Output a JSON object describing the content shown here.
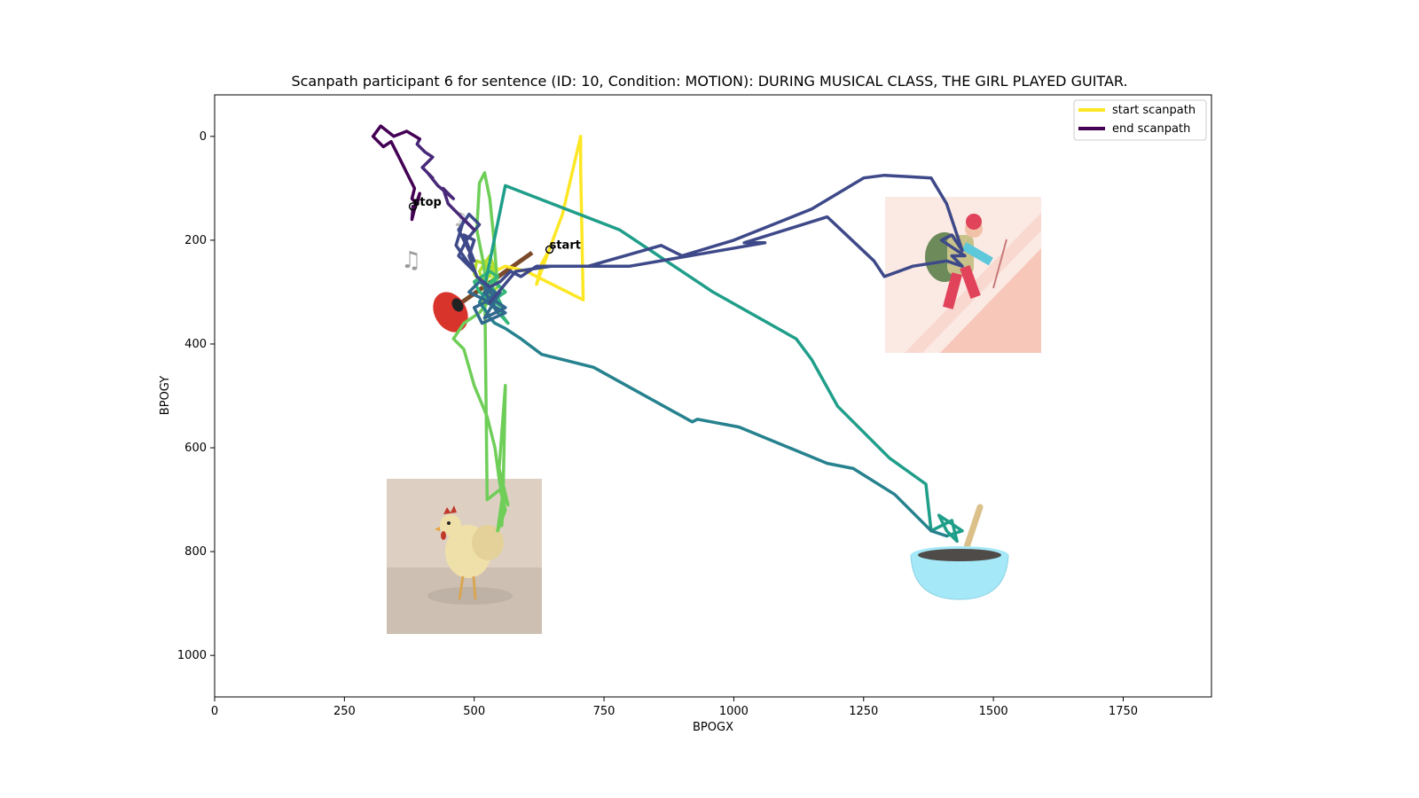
{
  "chart_data": {
    "type": "line",
    "title": "Scanpath participant 6 for sentence (ID: 10, Condition: MOTION):  DURING MUSICAL CLASS, THE GIRL PLAYED GUITAR.",
    "xlabel": "BPOGX",
    "ylabel": "BPOGY",
    "xlim": [
      0,
      1920
    ],
    "ylim": [
      1080,
      -80
    ],
    "y_inverted": true,
    "xticks": [
      0,
      250,
      500,
      750,
      1000,
      1250,
      1500,
      1750
    ],
    "yticks": [
      0,
      200,
      400,
      600,
      800,
      1000
    ],
    "grid": false,
    "legend_position": "top-right",
    "legend": [
      {
        "label": "start scanpath",
        "color": "#fde725"
      },
      {
        "label": "end scanpath",
        "color": "#440154"
      }
    ],
    "colormap": "viridis",
    "colormap_stops": [
      "#fde725",
      "#b5de2b",
      "#6ece58",
      "#35b779",
      "#1f9e89",
      "#26828e",
      "#31688e",
      "#3e4989",
      "#482878",
      "#440154"
    ],
    "annotations": [
      {
        "text": "start",
        "x": 645,
        "y": 218
      },
      {
        "text": "stop",
        "x": 382,
        "y": 135
      }
    ],
    "series": [
      {
        "x": [
          645,
          630,
          620,
          640,
          670,
          705,
          705,
          710,
          700,
          640,
          600,
          560,
          540,
          535
        ],
        "y": [
          218,
          245,
          285,
          230,
          150,
          0,
          60,
          315,
          310,
          280,
          260,
          250,
          260,
          250
        ]
      },
      {
        "x": [
          535,
          530,
          520,
          540,
          525,
          545,
          530,
          510,
          520,
          500,
          505,
          530,
          515,
          545
        ],
        "y": [
          250,
          270,
          240,
          265,
          300,
          270,
          230,
          260,
          290,
          265,
          240,
          250,
          320,
          290
        ]
      },
      {
        "x": [
          545,
          538,
          530,
          520,
          510,
          505,
          515,
          520,
          525,
          550,
          560,
          545,
          555,
          565,
          548,
          560,
          555,
          553
        ],
        "y": [
          290,
          200,
          120,
          70,
          90,
          180,
          230,
          260,
          700,
          680,
          720,
          760,
          690,
          710,
          640,
          480,
          720,
          750
        ]
      },
      {
        "x": [
          553,
          555,
          548,
          540,
          525,
          500,
          480,
          460,
          480,
          510,
          535,
          520,
          540
        ],
        "y": [
          750,
          700,
          660,
          600,
          540,
          480,
          410,
          390,
          360,
          340,
          310,
          300,
          280
        ]
      },
      {
        "x": [
          540,
          560,
          530,
          550,
          565,
          520,
          535,
          555,
          510,
          500,
          530,
          545,
          520
        ],
        "y": [
          280,
          300,
          320,
          340,
          360,
          310,
          290,
          330,
          300,
          280,
          260,
          270,
          290
        ]
      },
      {
        "x": [
          520,
          560,
          780,
          960,
          1120,
          1150,
          1200,
          1300,
          1370,
          1380,
          1420,
          1430,
          1410,
          1395,
          1425,
          1440,
          1410
        ],
        "y": [
          290,
          95,
          180,
          300,
          390,
          430,
          520,
          620,
          670,
          760,
          740,
          780,
          760,
          730,
          750,
          760,
          770
        ]
      },
      {
        "x": [
          1410,
          1380,
          1310,
          1230,
          1180,
          1010,
          930,
          920,
          730,
          630,
          590,
          560,
          540,
          530,
          525,
          510,
          520
        ],
        "y": [
          770,
          760,
          690,
          640,
          630,
          560,
          545,
          550,
          445,
          420,
          390,
          370,
          360,
          350,
          340,
          320,
          300
        ]
      },
      {
        "x": [
          520,
          545,
          530,
          560,
          520,
          550,
          530,
          490,
          510,
          540,
          525,
          560,
          515,
          500,
          540,
          520,
          530
        ],
        "y": [
          300,
          340,
          310,
          330,
          350,
          300,
          320,
          300,
          280,
          300,
          320,
          340,
          360,
          330,
          310,
          290,
          320
        ]
      },
      {
        "x": [
          530,
          580,
          650,
          800,
          1060,
          1020,
          1180,
          1270,
          1290,
          1345,
          1410,
          1440,
          1420,
          1445,
          1400,
          1420,
          1440,
          1410,
          1380,
          1290,
          1250,
          1150,
          1000,
          900,
          860,
          720,
          620,
          590,
          570,
          550,
          530
        ],
        "y": [
          320,
          260,
          250,
          250,
          205,
          205,
          155,
          240,
          270,
          250,
          240,
          250,
          230,
          230,
          200,
          190,
          220,
          130,
          80,
          75,
          80,
          140,
          200,
          230,
          210,
          250,
          250,
          270,
          260,
          280,
          290
        ]
      },
      {
        "x": [
          530,
          505,
          490,
          500,
          480,
          500,
          470,
          490,
          510,
          485,
          470,
          500,
          465,
          480,
          500
        ],
        "y": [
          290,
          270,
          230,
          200,
          190,
          240,
          180,
          150,
          170,
          200,
          230,
          260,
          210,
          160,
          180
        ]
      },
      {
        "x": [
          500,
          470,
          450,
          440,
          460,
          430,
          410,
          420,
          400,
          420,
          405,
          390,
          395
        ],
        "y": [
          180,
          150,
          130,
          100,
          120,
          95,
          70,
          80,
          60,
          40,
          30,
          15,
          5
        ]
      },
      {
        "x": [
          395,
          370,
          345,
          320,
          305,
          325,
          340,
          360,
          370,
          385,
          380,
          390,
          395,
          385,
          380,
          382
        ],
        "y": [
          5,
          -10,
          0,
          -20,
          0,
          20,
          10,
          50,
          70,
          100,
          120,
          130,
          110,
          140,
          160,
          135
        ]
      }
    ]
  }
}
